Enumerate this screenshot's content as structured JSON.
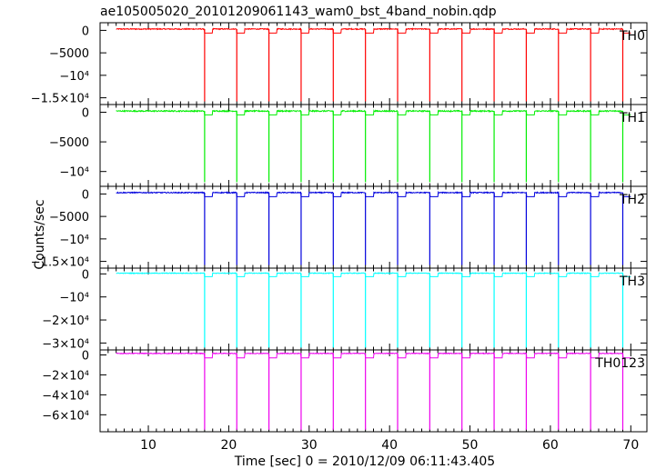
{
  "chart_data": {
    "type": "line",
    "title": "ae105005020_20101209061143_wam0_bst_4band_nobin.qdp",
    "xlabel": "Time [sec] 0 = 2010/12/09 06:11:43.405",
    "ylabel": "Counts/sec",
    "xlim": [
      4,
      72
    ],
    "x_ticks": [
      "10",
      "20",
      "30",
      "40",
      "50",
      "60",
      "70"
    ],
    "x_data_range": [
      6,
      70
    ],
    "gap_times": [
      17,
      21,
      25,
      29,
      33,
      37,
      41,
      45,
      49,
      53,
      57,
      61,
      65,
      69
    ],
    "grid": false,
    "legend": "none",
    "panels": [
      {
        "name": "TH0",
        "color": "#ff0000",
        "ylim": [
          -16500,
          1700
        ],
        "y_ticks": [
          {
            "v": 0,
            "label": "0"
          },
          {
            "v": -5000,
            "label": "−5000"
          },
          {
            "v": -10000,
            "label": "−10⁴"
          },
          {
            "v": -15000,
            "label": "−1.5×10⁴"
          }
        ],
        "baseline": 300,
        "noise": 110,
        "gap_level": -600,
        "dip": -15800
      },
      {
        "name": "TH1",
        "color": "#00ee00",
        "ylim": [
          -12500,
          1300
        ],
        "y_ticks": [
          {
            "v": 0,
            "label": "0"
          },
          {
            "v": -5000,
            "label": "−5000"
          },
          {
            "v": -10000,
            "label": "−10⁴"
          }
        ],
        "baseline": 200,
        "noise": 100,
        "gap_level": -450,
        "dip": -11800
      },
      {
        "name": "TH2",
        "color": "#0000dd",
        "ylim": [
          -16500,
          1700
        ],
        "y_ticks": [
          {
            "v": 0,
            "label": "0"
          },
          {
            "v": -5000,
            "label": "−5000"
          },
          {
            "v": -10000,
            "label": "−10⁴"
          },
          {
            "v": -15000,
            "label": "−1.5×10⁴"
          }
        ],
        "baseline": 300,
        "noise": 110,
        "gap_level": -600,
        "dip": -15800
      },
      {
        "name": "TH3",
        "color": "#00ffff",
        "ylim": [
          -33000,
          2500
        ],
        "y_ticks": [
          {
            "v": 0,
            "label": "0"
          },
          {
            "v": -10000,
            "label": "−10⁴"
          },
          {
            "v": -20000,
            "label": "−2×10⁴"
          },
          {
            "v": -30000,
            "label": "−3×10⁴"
          }
        ],
        "baseline": 300,
        "noise": 160,
        "gap_level": -1200,
        "dip": -32000
      },
      {
        "name": "TH0123",
        "color": "#ee00ee",
        "ylim": [
          -77000,
          5000
        ],
        "y_ticks": [
          {
            "v": 0,
            "label": "0"
          },
          {
            "v": -20000,
            "label": "−2×10⁴"
          },
          {
            "v": -40000,
            "label": "−4×10⁴"
          },
          {
            "v": -60000,
            "label": "−6×10⁴"
          }
        ],
        "baseline": 1500,
        "noise": 350,
        "gap_level": -3000,
        "dip": -75000
      }
    ]
  }
}
